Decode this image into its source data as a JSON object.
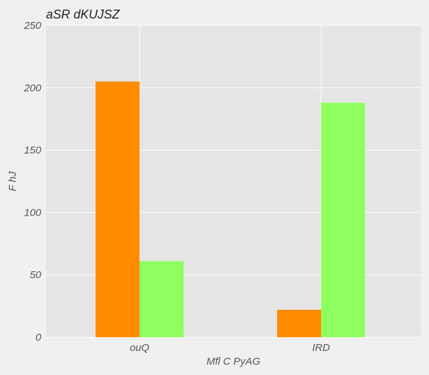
{
  "chart_data": {
    "type": "bar",
    "title": "aSR dKUJSZ",
    "xlabel": "Mfl C PyAG",
    "ylabel": "F hJ",
    "categories": [
      "ouQ",
      "IRD"
    ],
    "series": [
      {
        "values": [
          205,
          22
        ],
        "color": "#ff8c00"
      },
      {
        "values": [
          61,
          188
        ],
        "color": "#8fff60"
      }
    ],
    "ylim": [
      0,
      250
    ],
    "yticks": [
      0,
      50,
      100,
      150,
      200,
      250
    ],
    "grid": true,
    "legend": "none",
    "colors": {
      "plot_background": "#e5e5e5",
      "figure_background": "#f0f0f0",
      "grid": "#ffffff"
    }
  }
}
